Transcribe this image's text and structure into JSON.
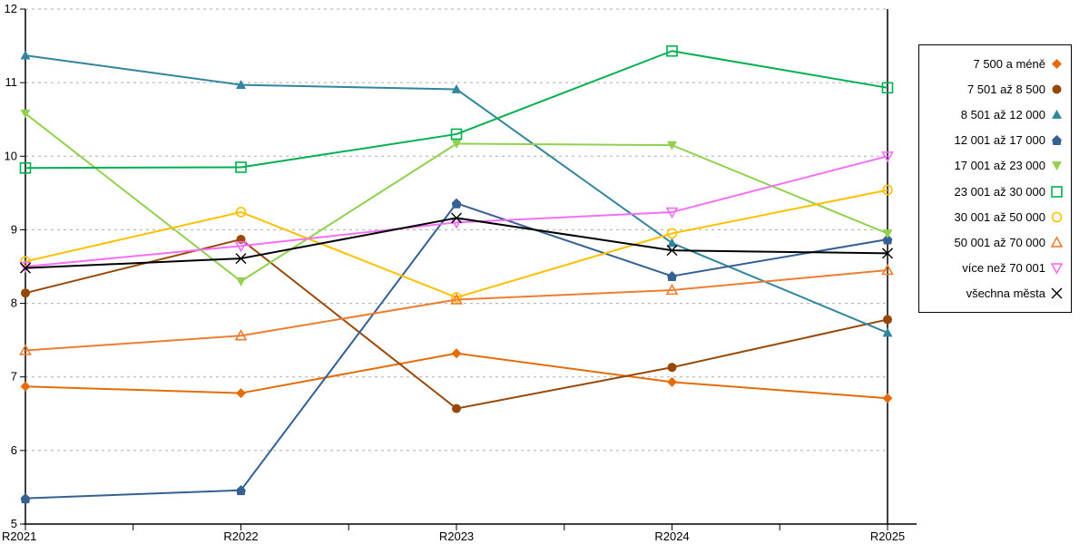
{
  "chart_data": {
    "type": "line",
    "title": "",
    "xlabel": "",
    "ylabel": "",
    "categories": [
      "R2021",
      "R2022",
      "R2023",
      "R2024",
      "R2025"
    ],
    "ylim": [
      5,
      12
    ],
    "ytick_step": 1,
    "ytick_labels": [
      "5",
      "6",
      "7",
      "8",
      "9",
      "10",
      "11",
      "12"
    ],
    "grid": "horizontal-dashed",
    "legend_position": "right",
    "series": [
      {
        "name": "7 500 a méně",
        "color": "#E46C0A",
        "marker": "diamond-filled",
        "values": [
          6.87,
          6.78,
          7.32,
          6.93,
          6.71
        ]
      },
      {
        "name": "7 501 až 8 500",
        "color": "#974706",
        "marker": "circle-filled",
        "values": [
          8.14,
          8.87,
          6.57,
          7.13,
          7.78
        ]
      },
      {
        "name": "8 501 až 12 000",
        "color": "#31859C",
        "marker": "triangle-up-filled",
        "values": [
          11.37,
          10.97,
          10.91,
          8.82,
          7.6
        ]
      },
      {
        "name": "12 001 až 17 000",
        "color": "#366092",
        "marker": "pentagon-filled",
        "values": [
          5.35,
          5.46,
          9.36,
          8.37,
          8.87
        ]
      },
      {
        "name": "17 001 až 23 000",
        "color": "#92D050",
        "marker": "triangle-down-filled",
        "values": [
          10.58,
          8.3,
          10.17,
          10.15,
          8.95
        ]
      },
      {
        "name": "23 001 až 30 000",
        "color": "#00B050",
        "marker": "square-open",
        "values": [
          9.84,
          9.85,
          10.3,
          11.43,
          10.93
        ]
      },
      {
        "name": "30 001 až 50 000",
        "color": "#FFC000",
        "marker": "circle-open",
        "values": [
          8.57,
          9.24,
          8.08,
          8.95,
          9.54
        ]
      },
      {
        "name": "50 001 až 70 000",
        "color": "#ED7D31",
        "marker": "triangle-up-open",
        "values": [
          7.36,
          7.56,
          8.05,
          8.18,
          8.45
        ]
      },
      {
        "name": "více než 70 001",
        "color": "#F46FF4",
        "marker": "triangle-down-open",
        "values": [
          8.5,
          8.78,
          9.1,
          9.24,
          10.0
        ]
      },
      {
        "name": "všechna města",
        "color": "#000000",
        "marker": "x",
        "values": [
          8.48,
          8.61,
          9.16,
          8.72,
          8.68
        ]
      }
    ],
    "colors": {
      "grid": "#ADADAD",
      "axis": "#000000",
      "background": "#FFFFFF"
    }
  }
}
